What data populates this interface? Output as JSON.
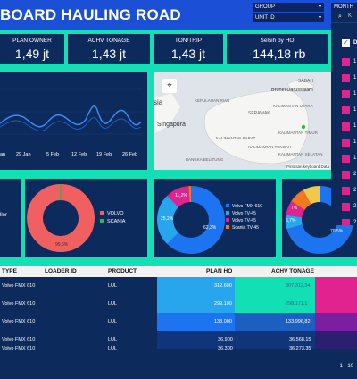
{
  "header": {
    "title": "BOARD HAULING ROAD",
    "filters": {
      "group": "GROUP",
      "unit_id": "UNIT ID",
      "month": "MONTH"
    }
  },
  "kpis": [
    {
      "label": "PLAN OWNER",
      "value": "1,49 jt"
    },
    {
      "label": "ACHV TONAGE",
      "value": "1,43 jt"
    },
    {
      "label": "TON/TRIP",
      "value": "1,43 jt"
    },
    {
      "label": "Selsih by HO",
      "value": "-144,18 rb"
    }
  ],
  "line_chart": {
    "x_ticks": [
      "an",
      "29 Jan",
      "5 Feb",
      "12 Feb",
      "19 Feb",
      "26 Feb"
    ]
  },
  "map": {
    "labels": [
      "sia",
      "Singapura",
      "Brunei Darussalam",
      "SABAH",
      "SERAWAK",
      "KALIMANTAN UTARA",
      "KEPULAUAN RIAU",
      "KALIMANTAN BARAT",
      "KALIMANTAN TIMUR",
      "KALIMANTAN TENGAH",
      "KALIMANTAN SELATAN",
      "BANGKA BELITUNG"
    ],
    "attribution": "Pintasan keyboard  Data"
  },
  "donut1": {
    "legend": [
      "VOLVO",
      "SCANIA"
    ],
    "slice_label": "99,6%",
    "side_label": "ller",
    "colors": [
      "#f06060",
      "#2fb64e"
    ]
  },
  "donut2": {
    "legend": [
      "Volvo FMX 610",
      "Volvo TV-45",
      "Volvo TV-45",
      "Scania TV-45"
    ],
    "slice_labels": [
      "11,2%",
      "25,2%",
      "62,3%"
    ],
    "colors": [
      "#1c74f0",
      "#27a6ee",
      "#e0238f",
      "#f0781e"
    ]
  },
  "donut3": {
    "slice_labels": [
      "7%",
      "6,7%",
      "70,5%"
    ]
  },
  "table": {
    "headers": [
      "TYPE",
      "LOADER ID",
      "PRODUCT",
      "PLAN HO",
      "ACHV TONAGE"
    ],
    "rows": [
      {
        "type": "Volvo FMX 610",
        "product": "LUL",
        "plan": "312.600",
        "achv": "307.312,34"
      },
      {
        "type": "Volvo FMX 610",
        "product": "LUL",
        "plan": "299.100",
        "achv": "298.171,1"
      },
      {
        "type": "Volvo FMX 610",
        "product": "LUL",
        "plan": "138.000",
        "achv": "133.996,82"
      },
      {
        "type": "Volvo FMX 610",
        "product": "LUL",
        "plan": "36.900",
        "achv": "36.568,15"
      },
      {
        "type": "Volvo FMX 610",
        "product": "LUL",
        "plan": "36.300",
        "achv": "36.273,35"
      }
    ],
    "pager": "1 - 10"
  },
  "dropdown": {
    "search_placeholder": "K",
    "header_label": "D",
    "items": [
      "1",
      "1",
      "1",
      "1",
      "1",
      "1",
      "1",
      "2",
      "2",
      "2",
      "2",
      "2",
      "2",
      "2",
      "2"
    ]
  }
}
